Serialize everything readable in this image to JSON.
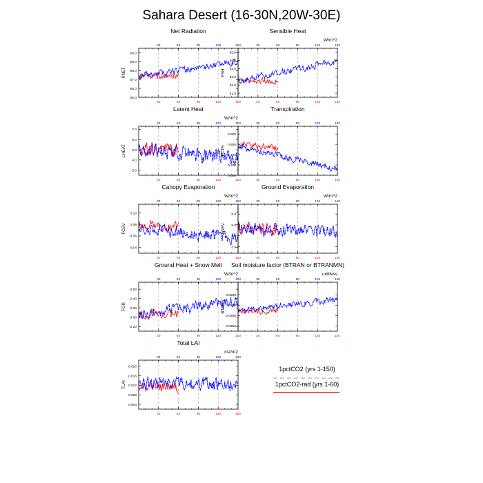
{
  "figure_title": "Sahara Desert (16-30N,20W-30E)",
  "legend": {
    "entries": [
      {
        "label": "1pctCO2 (yrs 1-150)",
        "color": "#0000ff",
        "style": "dashed"
      },
      {
        "label": "1pctCO2-rad (yrs 1-60)",
        "color": "#ff0000",
        "style": "solid"
      }
    ]
  },
  "colors": {
    "series_a": "#0000ff",
    "series_b": "#ff0000",
    "grid": "#aaaaaa"
  },
  "chart_data": [
    {
      "type": "line",
      "title": "Net Radiation",
      "units": "",
      "ylabel": "RNET",
      "xlim": [
        0,
        150
      ],
      "ylim": [
        55.0,
        60.5
      ],
      "yticks": [
        55.0,
        56.0,
        57.0,
        58.0,
        59.0,
        60.0
      ],
      "ytick_labels": [
        "55.0",
        "56.0",
        "57.0",
        "58.0",
        "59.0",
        "60.0"
      ],
      "xticks": [
        30,
        60,
        90,
        120,
        150
      ],
      "series": [
        {
          "name": "1pctCO2 (yrs 1-150)",
          "base": 57.3,
          "trend": 1.7,
          "amp": 0.5,
          "seed": 11
        },
        {
          "name": "1pctCO2-rad (yrs 1-60)",
          "base": 57.3,
          "trend": 0.1,
          "amp": 0.45,
          "seed": 12
        }
      ]
    },
    {
      "type": "line",
      "title": "Sensible Heat",
      "units": "W/m^2",
      "ylabel": "FSH",
      "xlim": [
        0,
        150
      ],
      "ylim": [
        50.5,
        56.5
      ],
      "yticks": [
        51.0,
        52.0,
        53.0,
        54.0,
        55.0,
        56.0
      ],
      "ytick_labels": [
        "51.0",
        "52.0",
        "53.0",
        "54.0",
        "55.0",
        "56.0"
      ],
      "xticks": [
        30,
        60,
        90,
        120,
        150
      ],
      "series": [
        {
          "name": "1pctCO2 (yrs 1-150)",
          "base": 52.4,
          "trend": 2.6,
          "amp": 0.6,
          "seed": 21
        },
        {
          "name": "1pctCO2-rad (yrs 1-60)",
          "base": 52.4,
          "trend": 0.2,
          "amp": 0.5,
          "seed": 22
        }
      ]
    },
    {
      "type": "line",
      "title": "Latent Heat",
      "units": "W/m^2",
      "ylabel": "LHEAT",
      "xlim": [
        0,
        150
      ],
      "ylim": [
        2.5,
        7.3
      ],
      "yticks": [
        3.0,
        4.0,
        5.0,
        6.0,
        7.0
      ],
      "ytick_labels": [
        "3.0",
        "4.0",
        "5.0",
        "6.0",
        "7.0"
      ],
      "xticks": [
        30,
        60,
        90,
        120,
        150
      ],
      "series": [
        {
          "name": "1pctCO2 (yrs 1-150)",
          "base": 5.0,
          "trend": -0.8,
          "amp": 1.0,
          "seed": 31
        },
        {
          "name": "1pctCO2-rad (yrs 1-60)",
          "base": 5.1,
          "trend": -0.6,
          "amp": 0.9,
          "seed": 32
        }
      ]
    },
    {
      "type": "line",
      "title": "Transpiration",
      "units": "",
      "ylabel": "FCTR",
      "xlim": [
        0,
        150
      ],
      "ylim": [
        0.0,
        0.95
      ],
      "yticks": [
        0.0,
        0.2,
        0.4,
        0.6,
        0.8
      ],
      "ytick_labels": [
        "0.000",
        "0.200",
        "0.400",
        "0.600",
        "0.800"
      ],
      "xticks": [
        30,
        60,
        90,
        120,
        150
      ],
      "series": [
        {
          "name": "1pctCO2 (yrs 1-150)",
          "base": 0.58,
          "trend": -0.48,
          "amp": 0.09,
          "seed": 41
        },
        {
          "name": "1pctCO2-rad (yrs 1-60)",
          "base": 0.6,
          "trend": -0.15,
          "amp": 0.09,
          "seed": 42
        }
      ]
    },
    {
      "type": "line",
      "title": "Canopy Evaporation",
      "units": "W/m^2",
      "ylabel": "FCEV",
      "xlim": [
        0,
        150
      ],
      "ylim": [
        0.03,
        0.115
      ],
      "yticks": [
        0.04,
        0.06,
        0.08,
        0.1
      ],
      "ytick_labels": [
        "0.04",
        "0.06",
        "0.08",
        "0.10"
      ],
      "xticks": [
        30,
        60,
        90,
        120,
        150
      ],
      "series": [
        {
          "name": "1pctCO2 (yrs 1-150)",
          "base": 0.075,
          "trend": -0.02,
          "amp": 0.014,
          "seed": 51
        },
        {
          "name": "1pctCO2-rad (yrs 1-60)",
          "base": 0.08,
          "trend": -0.012,
          "amp": 0.012,
          "seed": 52
        }
      ]
    },
    {
      "type": "line",
      "title": "Ground Evaporation",
      "units": "W/m^2",
      "ylabel": "FGEV",
      "xlim": [
        0,
        150
      ],
      "ylim": [
        2.4,
        6.9
      ],
      "yticks": [
        3.0,
        4.0,
        5.0,
        6.0
      ],
      "ytick_labels": [
        "3.0",
        "4.0",
        "5.0",
        "6.0"
      ],
      "xticks": [
        30,
        60,
        90,
        120,
        150
      ],
      "series": [
        {
          "name": "1pctCO2 (yrs 1-150)",
          "base": 4.7,
          "trend": -0.5,
          "amp": 0.85,
          "seed": 61
        },
        {
          "name": "1pctCO2-rad (yrs 1-60)",
          "base": 4.7,
          "trend": -0.4,
          "amp": 0.8,
          "seed": 62
        }
      ]
    },
    {
      "type": "line",
      "title": "Ground Heat + Snow Melt",
      "units": "W/m^2",
      "ylabel": "FGR",
      "xlim": [
        0,
        150
      ],
      "ylim": [
        -0.3,
        0.75
      ],
      "yticks": [
        -0.2,
        0.0,
        0.2,
        0.4,
        0.6
      ],
      "ytick_labels": [
        "-0.20",
        "0.00",
        "0.20",
        "0.40",
        "0.60"
      ],
      "xticks": [
        30,
        60,
        90,
        120,
        150
      ],
      "series": [
        {
          "name": "1pctCO2 (yrs 1-150)",
          "base": 0.05,
          "trend": 0.3,
          "amp": 0.16,
          "seed": 71
        },
        {
          "name": "1pctCO2-rad (yrs 1-60)",
          "base": 0.05,
          "trend": 0.05,
          "amp": 0.14,
          "seed": 72
        }
      ]
    },
    {
      "type": "line",
      "title": "Soil moisture factor (BTRAN or BTRANMN)",
      "units": "unitless",
      "ylabel": "BTRAN",
      "xlim": [
        0,
        150
      ],
      "ylim": [
        0.0245,
        0.0292
      ],
      "yticks": [
        0.025,
        0.026,
        0.027,
        0.028
      ],
      "ytick_labels": [
        "0.0250",
        "0.0260",
        "0.0270",
        "0.0280"
      ],
      "xticks": [
        30,
        60,
        90,
        120,
        150
      ],
      "series": [
        {
          "name": "1pctCO2 (yrs 1-150)",
          "base": 0.02645,
          "trend": 0.0011,
          "amp": 0.0004,
          "seed": 81
        },
        {
          "name": "1pctCO2-rad (yrs 1-60)",
          "base": 0.0264,
          "trend": 0.0001,
          "amp": 0.0004,
          "seed": 82
        }
      ]
    },
    {
      "type": "line",
      "title": "Total LAI",
      "units": "m2/m2",
      "ylabel": "TLAI",
      "xlim": [
        0,
        150
      ],
      "ylim": [
        0.002,
        0.0225
      ],
      "yticks": [
        0.004,
        0.008,
        0.012,
        0.016,
        0.02
      ],
      "ytick_labels": [
        "0.004",
        "0.008",
        "0.012",
        "0.016",
        "0.020"
      ],
      "xticks": [
        30,
        60,
        90,
        120,
        150
      ],
      "series": [
        {
          "name": "1pctCO2 (yrs 1-150)",
          "base": 0.013,
          "trend": -0.001,
          "amp": 0.0038,
          "seed": 91
        },
        {
          "name": "1pctCO2-rad (yrs 1-60)",
          "base": 0.0115,
          "trend": -0.001,
          "amp": 0.0032,
          "seed": 92
        }
      ]
    }
  ]
}
